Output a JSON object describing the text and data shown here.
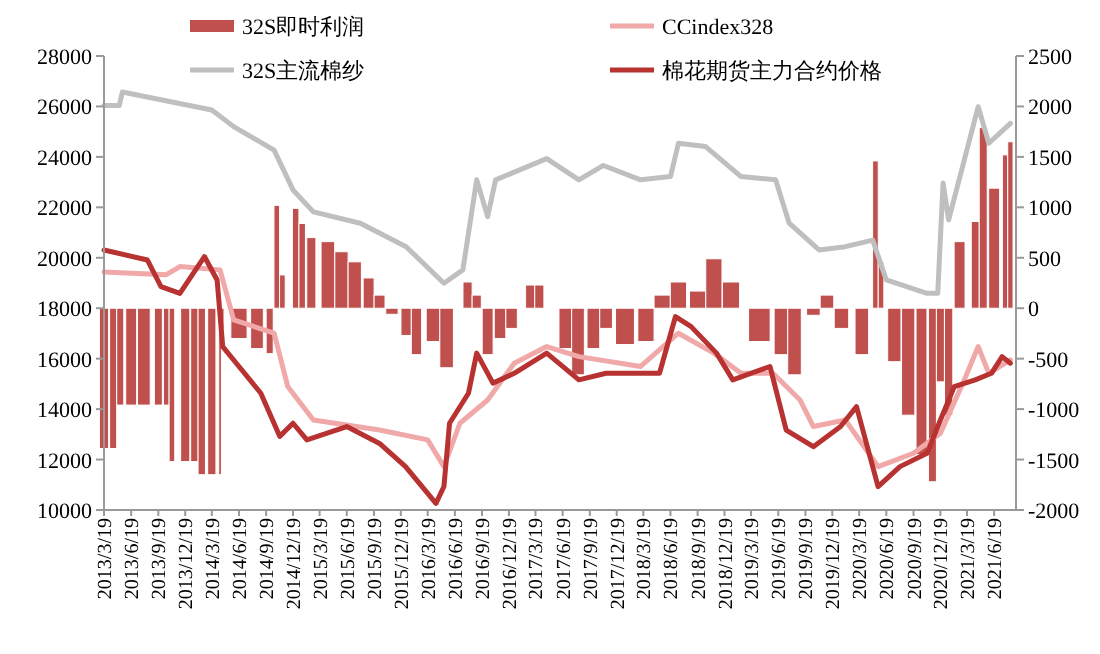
{
  "chart_data": {
    "type": "line",
    "legend": "top",
    "xlim": [
      "2013-03-19",
      "2021-09-01"
    ],
    "xticks": [
      {
        "value": "2013-03-19",
        "label": "2013/3/19"
      },
      {
        "value": "2013-06-19",
        "label": "2013/6/19"
      },
      {
        "value": "2013-09-19",
        "label": "2013/9/19"
      },
      {
        "value": "2013-12-19",
        "label": "2013/12/19"
      },
      {
        "value": "2014-03-19",
        "label": "2014/3/19"
      },
      {
        "value": "2014-06-19",
        "label": "2014/6/19"
      },
      {
        "value": "2014-09-19",
        "label": "2014/9/19"
      },
      {
        "value": "2014-12-19",
        "label": "2014/12/19"
      },
      {
        "value": "2015-03-19",
        "label": "2015/3/19"
      },
      {
        "value": "2015-06-19",
        "label": "2015/6/19"
      },
      {
        "value": "2015-09-19",
        "label": "2015/9/19"
      },
      {
        "value": "2015-12-19",
        "label": "2015/12/19"
      },
      {
        "value": "2016-03-19",
        "label": "2016/3/19"
      },
      {
        "value": "2016-06-19",
        "label": "2016/6/19"
      },
      {
        "value": "2016-09-19",
        "label": "2016/9/19"
      },
      {
        "value": "2016-12-19",
        "label": "2016/12/19"
      },
      {
        "value": "2017-03-19",
        "label": "2017/3/19"
      },
      {
        "value": "2017-06-19",
        "label": "2017/6/19"
      },
      {
        "value": "2017-09-19",
        "label": "2017/9/19"
      },
      {
        "value": "2017-12-19",
        "label": "2017/12/19"
      },
      {
        "value": "2018-03-19",
        "label": "2018/3/19"
      },
      {
        "value": "2018-06-19",
        "label": "2018/6/19"
      },
      {
        "value": "2018-09-19",
        "label": "2018/9/19"
      },
      {
        "value": "2018-12-19",
        "label": "2018/12/19"
      },
      {
        "value": "2019-03-19",
        "label": "2019/3/19"
      },
      {
        "value": "2019-06-19",
        "label": "2019/6/19"
      },
      {
        "value": "2019-09-19",
        "label": "2019/9/19"
      },
      {
        "value": "2019-12-19",
        "label": "2019/12/19"
      },
      {
        "value": "2020-03-19",
        "label": "2020/3/19"
      },
      {
        "value": "2020-06-19",
        "label": "2020/6/19"
      },
      {
        "value": "2020-09-19",
        "label": "2020/9/19"
      },
      {
        "value": "2020-12-19",
        "label": "2020/12/19"
      },
      {
        "value": "2021-03-19",
        "label": "2021/3/19"
      },
      {
        "value": "2021-06-19",
        "label": "2021/6/19"
      }
    ],
    "ylim": [
      10000,
      28000
    ],
    "yticks": [
      10000,
      12000,
      14000,
      16000,
      18000,
      20000,
      22000,
      24000,
      26000,
      28000
    ],
    "y2lim": [
      -2000,
      2500
    ],
    "y2ticks": [
      -2000,
      -1500,
      -1000,
      -500,
      0,
      500,
      1000,
      1500,
      2000,
      2500
    ],
    "series": [
      {
        "name": "32S即时利润",
        "type": "bar",
        "axis": "y2",
        "color": "#c0504d",
        "x": [
          "2013-03-19",
          "2013-04-19",
          "2013-05-13",
          "2013-06-19",
          "2013-08-01",
          "2013-09-19",
          "2013-10-16",
          "2013-11-04",
          "2013-12-19",
          "2014-01-19",
          "2014-02-13",
          "2014-03-19",
          "2014-04-16",
          "2014-04-25",
          "2014-06-19",
          "2014-08-19",
          "2014-10-01",
          "2014-10-25",
          "2014-11-13",
          "2014-12-28",
          "2015-01-19",
          "2015-02-19",
          "2015-04-16",
          "2015-06-01",
          "2015-07-16",
          "2015-09-01",
          "2015-10-08",
          "2015-11-19",
          "2016-01-06",
          "2016-02-10",
          "2016-04-06",
          "2016-05-22",
          "2016-08-01",
          "2016-09-01",
          "2016-10-08",
          "2016-11-19",
          "2016-12-28",
          "2017-03-01",
          "2017-04-01",
          "2017-06-28",
          "2017-08-10",
          "2017-10-01",
          "2017-11-13",
          "2018-01-16",
          "2018-03-28",
          "2018-05-22",
          "2018-07-16",
          "2018-09-19",
          "2018-11-13",
          "2019-01-10",
          "2019-04-16",
          "2019-06-28",
          "2019-08-13",
          "2019-10-16",
          "2019-12-01",
          "2020-01-19",
          "2020-03-28",
          "2020-05-13",
          "2020-06-01",
          "2020-07-16",
          "2020-09-01",
          "2020-10-16",
          "2020-11-22",
          "2020-12-19",
          "2021-01-16",
          "2021-02-22",
          "2021-04-16",
          "2021-05-13",
          "2021-06-19",
          "2021-07-26",
          "2021-08-13"
        ],
        "values": [
          -1390,
          -1390,
          -960,
          -960,
          -960,
          -960,
          -960,
          -1520,
          -1520,
          -1520,
          -1650,
          -1650,
          -1650,
          -200,
          -300,
          -400,
          -450,
          1020,
          330,
          990,
          840,
          700,
          660,
          560,
          460,
          300,
          130,
          -60,
          -270,
          -460,
          -330,
          -590,
          260,
          130,
          -460,
          -300,
          -200,
          230,
          230,
          -400,
          -660,
          -400,
          -200,
          -360,
          -330,
          130,
          260,
          170,
          490,
          260,
          -330,
          -460,
          -660,
          -70,
          130,
          -200,
          -460,
          1460,
          460,
          -530,
          -1060,
          -1450,
          -1720,
          -730,
          -1060,
          660,
          860,
          1790,
          1190,
          1520,
          1650
        ]
      },
      {
        "name": "CCindex328",
        "color": "#f0a8a8",
        "x": [
          "2013-03-19",
          "2013-10-16",
          "2013-12-01",
          "2014-04-16",
          "2014-06-01",
          "2014-10-16",
          "2014-12-01",
          "2015-02-26",
          "2015-10-08",
          "2016-03-19",
          "2016-05-13",
          "2016-07-06",
          "2016-10-08",
          "2017-01-06",
          "2017-04-26",
          "2017-08-13",
          "2018-03-10",
          "2018-07-16",
          "2018-11-13",
          "2019-02-13",
          "2019-06-01",
          "2019-09-01",
          "2019-10-16",
          "2020-02-01",
          "2020-05-22",
          "2020-09-19",
          "2020-12-19",
          "2021-03-10",
          "2021-04-26",
          "2021-06-01",
          "2021-08-13"
        ],
        "values": [
          19440,
          19330,
          19650,
          19520,
          17540,
          17010,
          14900,
          13570,
          13170,
          12780,
          11720,
          13440,
          14360,
          15820,
          16480,
          16080,
          15690,
          17010,
          16220,
          15420,
          15420,
          14360,
          13310,
          13570,
          11720,
          12250,
          13040,
          15160,
          16480,
          15420,
          15950
        ]
      },
      {
        "name": "32S主流棉纱",
        "color": "#bfbfbf",
        "x": [
          "2013-03-19",
          "2013-05-10",
          "2013-05-20",
          "2014-03-19",
          "2014-06-01",
          "2014-10-16",
          "2014-12-19",
          "2015-02-26",
          "2015-08-04",
          "2016-01-06",
          "2016-05-13",
          "2016-07-16",
          "2016-09-01",
          "2016-10-08",
          "2016-11-04",
          "2017-04-26",
          "2017-08-13",
          "2017-11-04",
          "2018-03-10",
          "2018-06-19",
          "2018-07-16",
          "2018-10-16",
          "2019-02-13",
          "2019-06-10",
          "2019-07-26",
          "2019-11-04",
          "2020-02-01",
          "2020-05-04",
          "2020-06-19",
          "2020-11-04",
          "2020-12-10",
          "2020-12-28",
          "2021-01-16",
          "2021-03-10",
          "2021-04-26",
          "2021-06-01",
          "2021-08-13"
        ],
        "values": [
          26040,
          26040,
          26570,
          25860,
          25200,
          24270,
          22690,
          21820,
          21370,
          20440,
          18990,
          19520,
          23090,
          21630,
          23090,
          23930,
          23090,
          23660,
          23090,
          23220,
          24540,
          24410,
          23220,
          23090,
          21370,
          20310,
          20440,
          20700,
          19120,
          18590,
          18590,
          22960,
          21500,
          23880,
          25990,
          24540,
          25330
        ]
      },
      {
        "name": "棉花期货主力合约价格",
        "color": "#b83232",
        "x": [
          "2013-03-19",
          "2013-08-13",
          "2013-09-28",
          "2013-12-01",
          "2014-02-22",
          "2014-04-06",
          "2014-04-25",
          "2014-06-19",
          "2014-09-01",
          "2014-11-04",
          "2014-12-19",
          "2015-02-04",
          "2015-06-19",
          "2015-10-08",
          "2016-01-04",
          "2016-03-19",
          "2016-04-16",
          "2016-05-13",
          "2016-06-01",
          "2016-08-04",
          "2016-09-01",
          "2016-10-26",
          "2017-01-06",
          "2017-04-26",
          "2017-08-13",
          "2017-11-13",
          "2018-05-13",
          "2018-07-06",
          "2018-08-28",
          "2018-11-22",
          "2019-01-16",
          "2019-05-22",
          "2019-07-16",
          "2019-10-16",
          "2020-01-16",
          "2020-03-10",
          "2020-05-22",
          "2020-08-04",
          "2020-11-04",
          "2020-12-19",
          "2021-02-04",
          "2021-04-16",
          "2021-06-10",
          "2021-07-16",
          "2021-08-13"
        ],
        "values": [
          20310,
          19910,
          18860,
          18590,
          20050,
          19120,
          16480,
          15690,
          14630,
          12920,
          13440,
          12780,
          13310,
          12640,
          11720,
          10660,
          10260,
          10930,
          13440,
          14630,
          16220,
          15030,
          15420,
          16220,
          15160,
          15420,
          15420,
          17670,
          17270,
          16220,
          15160,
          15690,
          13170,
          12510,
          13310,
          14100,
          10930,
          11720,
          12250,
          13570,
          14890,
          15160,
          15420,
          16080,
          15820
        ]
      }
    ]
  }
}
